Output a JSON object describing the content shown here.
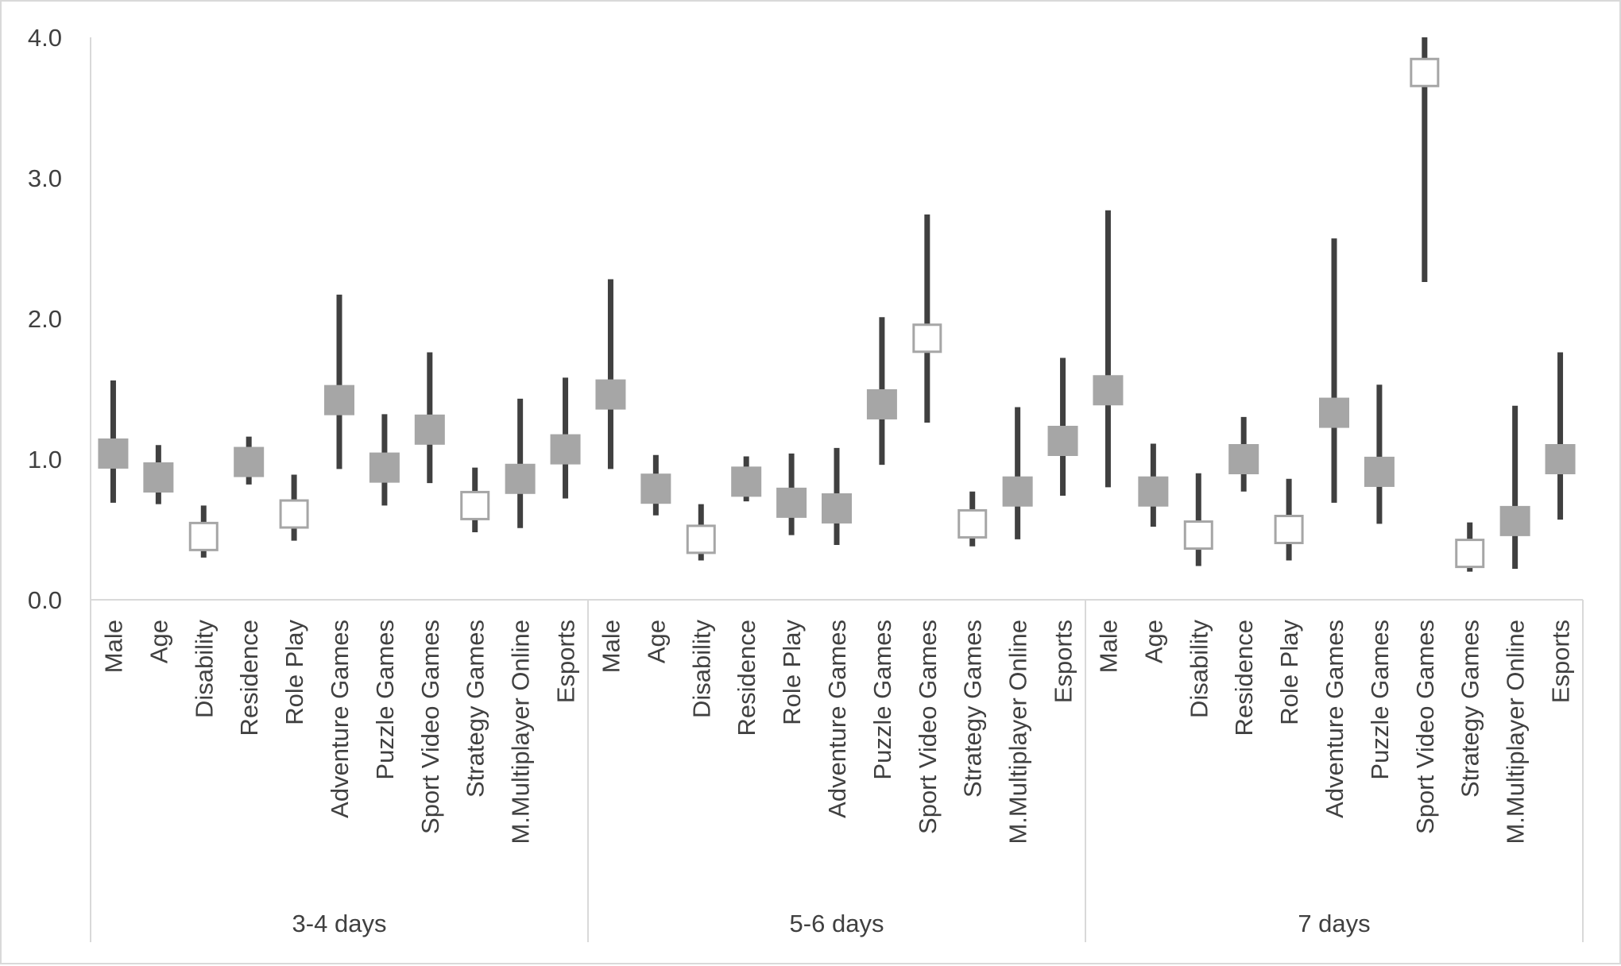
{
  "chart_data": {
    "type": "scatter",
    "subtype": "odds-ratio-with-confidence-intervals",
    "title": "",
    "xlabel": "",
    "ylabel": "",
    "ylim": [
      0,
      4
    ],
    "y_ticks": [
      "0.0",
      "1.0",
      "2.0",
      "3.0",
      "4.0"
    ],
    "grid": false,
    "legend": "none",
    "colors": {
      "ci_line": "#404040",
      "marker_fill_significant": "#a6a6a6",
      "marker_fill_nonsignificant": "#ffffff",
      "marker_stroke_nonsignificant": "#a6a6a6",
      "axis": "#d9d9d9",
      "text": "#404040"
    },
    "groups": [
      {
        "label": "3-4 days",
        "items": [
          {
            "label": "Male",
            "value": 1.04,
            "lower": 0.69,
            "upper": 1.56,
            "significant": true
          },
          {
            "label": "Age",
            "value": 0.87,
            "lower": 0.68,
            "upper": 1.1,
            "significant": true
          },
          {
            "label": "Disability",
            "value": 0.45,
            "lower": 0.3,
            "upper": 0.67,
            "significant": false
          },
          {
            "label": "Residence",
            "value": 0.98,
            "lower": 0.82,
            "upper": 1.16,
            "significant": true
          },
          {
            "label": "Role Play",
            "value": 0.61,
            "lower": 0.42,
            "upper": 0.89,
            "significant": false
          },
          {
            "label": "Adventure Games",
            "value": 1.42,
            "lower": 0.93,
            "upper": 2.17,
            "significant": true
          },
          {
            "label": "Puzzle Games",
            "value": 0.94,
            "lower": 0.67,
            "upper": 1.32,
            "significant": true
          },
          {
            "label": "Sport Video Games",
            "value": 1.21,
            "lower": 0.83,
            "upper": 1.76,
            "significant": true
          },
          {
            "label": "Strategy Games",
            "value": 0.67,
            "lower": 0.48,
            "upper": 0.94,
            "significant": false
          },
          {
            "label": "M.Multiplayer Online",
            "value": 0.86,
            "lower": 0.51,
            "upper": 1.43,
            "significant": true
          },
          {
            "label": "Esports",
            "value": 1.07,
            "lower": 0.72,
            "upper": 1.58,
            "significant": true
          }
        ]
      },
      {
        "label": "5-6 days",
        "items": [
          {
            "label": "Male",
            "value": 1.46,
            "lower": 0.93,
            "upper": 2.28,
            "significant": true
          },
          {
            "label": "Age",
            "value": 0.79,
            "lower": 0.6,
            "upper": 1.03,
            "significant": true
          },
          {
            "label": "Disability",
            "value": 0.43,
            "lower": 0.28,
            "upper": 0.68,
            "significant": false
          },
          {
            "label": "Residence",
            "value": 0.84,
            "lower": 0.7,
            "upper": 1.02,
            "significant": true
          },
          {
            "label": "Role Play",
            "value": 0.69,
            "lower": 0.46,
            "upper": 1.04,
            "significant": true
          },
          {
            "label": "Adventure Games",
            "value": 0.65,
            "lower": 0.39,
            "upper": 1.08,
            "significant": true
          },
          {
            "label": "Puzzle Games",
            "value": 1.39,
            "lower": 0.96,
            "upper": 2.01,
            "significant": true
          },
          {
            "label": "Sport Video Games",
            "value": 1.86,
            "lower": 1.26,
            "upper": 2.74,
            "significant": false
          },
          {
            "label": "Strategy Games",
            "value": 0.54,
            "lower": 0.38,
            "upper": 0.77,
            "significant": false
          },
          {
            "label": "M.Multiplayer Online",
            "value": 0.77,
            "lower": 0.43,
            "upper": 1.37,
            "significant": true
          },
          {
            "label": "Esports",
            "value": 1.13,
            "lower": 0.74,
            "upper": 1.72,
            "significant": true
          }
        ]
      },
      {
        "label": "7 days",
        "items": [
          {
            "label": "Male",
            "value": 1.49,
            "lower": 0.8,
            "upper": 2.77,
            "significant": true
          },
          {
            "label": "Age",
            "value": 0.77,
            "lower": 0.52,
            "upper": 1.11,
            "significant": true
          },
          {
            "label": "Disability",
            "value": 0.46,
            "lower": 0.24,
            "upper": 0.9,
            "significant": false
          },
          {
            "label": "Residence",
            "value": 1.0,
            "lower": 0.77,
            "upper": 1.3,
            "significant": true
          },
          {
            "label": "Role Play",
            "value": 0.5,
            "lower": 0.28,
            "upper": 0.86,
            "significant": false
          },
          {
            "label": "Adventure Games",
            "value": 1.33,
            "lower": 0.69,
            "upper": 2.57,
            "significant": true
          },
          {
            "label": "Puzzle Games",
            "value": 0.91,
            "lower": 0.54,
            "upper": 1.53,
            "significant": true
          },
          {
            "label": "Sport Video Games",
            "value": 3.75,
            "lower": 2.26,
            "upper": 4.0,
            "significant": false
          },
          {
            "label": "Strategy Games",
            "value": 0.33,
            "lower": 0.2,
            "upper": 0.55,
            "significant": false
          },
          {
            "label": "M.Multiplayer Online",
            "value": 0.56,
            "lower": 0.22,
            "upper": 1.38,
            "significant": true
          },
          {
            "label": "Esports",
            "value": 1.0,
            "lower": 0.57,
            "upper": 1.76,
            "significant": true
          }
        ]
      }
    ]
  }
}
